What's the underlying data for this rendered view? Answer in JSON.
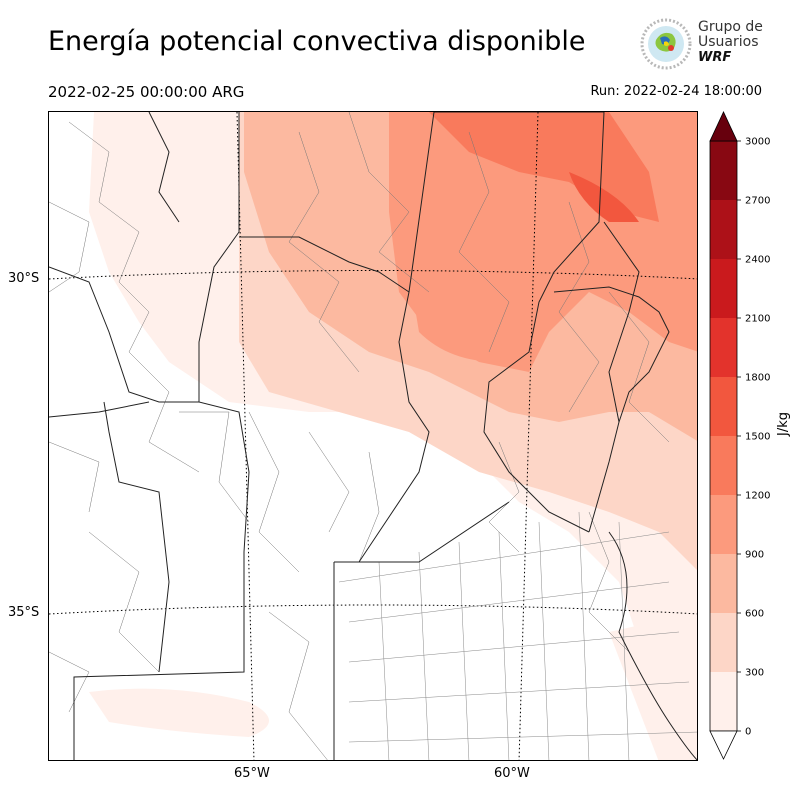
{
  "header": {
    "title": "Energía potencial convectiva disponible",
    "valid_time": "2022-02-25 00:00:00 ARG",
    "run": "Run: 2022-02-24 18:00:00"
  },
  "logo": {
    "line1": "Grupo de",
    "line2": "Usuarios",
    "line3": "WRF"
  },
  "map": {
    "lat_labels": [
      "30°S",
      "35°S"
    ],
    "lon_labels": [
      "65°W",
      "60°W"
    ]
  },
  "colorbar": {
    "unit": "J/kg",
    "ticks": [
      "0",
      "300",
      "600",
      "900",
      "1200",
      "1500",
      "1800",
      "2100",
      "2400",
      "2700",
      "3000"
    ],
    "colors": [
      "#fff0eb",
      "#fdd6c7",
      "#fcb9a0",
      "#fc9a7d",
      "#f97a5c",
      "#f2573e",
      "#e3332c",
      "#ca1a1d",
      "#ad1118",
      "#880812"
    ],
    "over_color": "#67000d"
  }
}
